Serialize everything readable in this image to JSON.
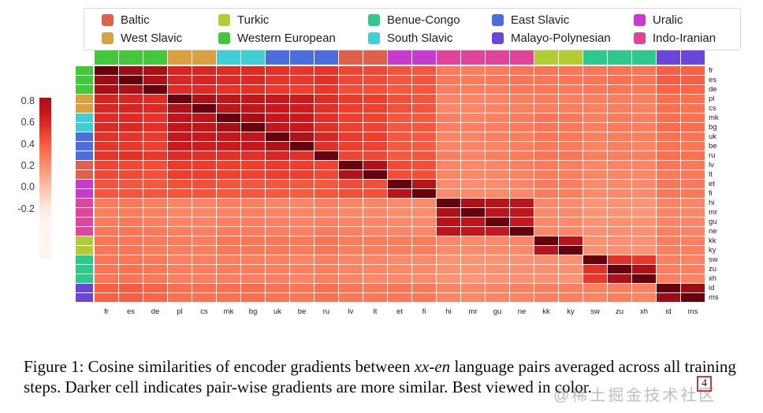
{
  "caption": {
    "prefix": "Figure 1: Cosine similarities of encoder gradients between ",
    "italic": "xx-en",
    "suffix": " language pairs averaged across all training steps. Darker cell indicates pair-wise gradients are more similar. Best viewed in color."
  },
  "watermark": {
    "text": "@稀土掘金技术社区",
    "page_number": "4"
  },
  "legend": {
    "families": [
      {
        "name": "Baltic",
        "color": "#e0604e"
      },
      {
        "name": "West Slavic",
        "color": "#d9a13f"
      },
      {
        "name": "Turkic",
        "color": "#b3cc35"
      },
      {
        "name": "Western European",
        "color": "#43c83b"
      },
      {
        "name": "Benue-Congo",
        "color": "#2ec98c"
      },
      {
        "name": "South Slavic",
        "color": "#3fcfd4"
      },
      {
        "name": "East Slavic",
        "color": "#4a6fdc"
      },
      {
        "name": "Malayo-Polynesian",
        "color": "#6a46d9"
      },
      {
        "name": "Uralic",
        "color": "#c63bce"
      },
      {
        "name": "Indo-Iranian",
        "color": "#e0449c"
      }
    ]
  },
  "languages": [
    {
      "code": "fr",
      "family": "Western European"
    },
    {
      "code": "es",
      "family": "Western European"
    },
    {
      "code": "de",
      "family": "Western European"
    },
    {
      "code": "pl",
      "family": "West Slavic"
    },
    {
      "code": "cs",
      "family": "West Slavic"
    },
    {
      "code": "mk",
      "family": "South Slavic"
    },
    {
      "code": "bg",
      "family": "South Slavic"
    },
    {
      "code": "uk",
      "family": "East Slavic"
    },
    {
      "code": "be",
      "family": "East Slavic"
    },
    {
      "code": "ru",
      "family": "East Slavic"
    },
    {
      "code": "lv",
      "family": "Baltic"
    },
    {
      "code": "lt",
      "family": "Baltic"
    },
    {
      "code": "et",
      "family": "Uralic"
    },
    {
      "code": "fi",
      "family": "Uralic"
    },
    {
      "code": "hi",
      "family": "Indo-Iranian"
    },
    {
      "code": "mr",
      "family": "Indo-Iranian"
    },
    {
      "code": "gu",
      "family": "Indo-Iranian"
    },
    {
      "code": "ne",
      "family": "Indo-Iranian"
    },
    {
      "code": "kk",
      "family": "Turkic"
    },
    {
      "code": "ky",
      "family": "Turkic"
    },
    {
      "code": "sw",
      "family": "Benue-Congo"
    },
    {
      "code": "zu",
      "family": "Benue-Congo"
    },
    {
      "code": "xh",
      "family": "Benue-Congo"
    },
    {
      "code": "id",
      "family": "Malayo-Polynesian"
    },
    {
      "code": "ms",
      "family": "Malayo-Polynesian"
    }
  ],
  "chart_data": {
    "type": "heatmap",
    "title": "Cosine similarities of encoder gradients between xx-en language pairs",
    "colormap": "Reds",
    "vmin": -0.3,
    "vmax": 1.0,
    "colorbar_ticks": [
      "0.8",
      "0.6",
      "0.4",
      "0.2",
      "0.0",
      "-0.2"
    ],
    "x_labels": [
      "fr",
      "es",
      "de",
      "pl",
      "cs",
      "mk",
      "bg",
      "uk",
      "be",
      "ru",
      "lv",
      "lt",
      "et",
      "fi",
      "hi",
      "mr",
      "gu",
      "ne",
      "kk",
      "ky",
      "sw",
      "zu",
      "xh",
      "id",
      "ms"
    ],
    "y_labels": [
      "fr",
      "es",
      "de",
      "pl",
      "cs",
      "mk",
      "bg",
      "uk",
      "be",
      "ru",
      "lv",
      "lt",
      "et",
      "fi",
      "hi",
      "mr",
      "gu",
      "ne",
      "kk",
      "ky",
      "sw",
      "zu",
      "xh",
      "id",
      "ms"
    ],
    "matrix": [
      [
        1.0,
        0.86,
        0.82,
        0.62,
        0.61,
        0.58,
        0.59,
        0.56,
        0.54,
        0.55,
        0.48,
        0.47,
        0.43,
        0.42,
        0.28,
        0.27,
        0.28,
        0.3,
        0.31,
        0.3,
        0.3,
        0.31,
        0.3,
        0.39,
        0.38
      ],
      [
        0.86,
        1.0,
        0.8,
        0.61,
        0.62,
        0.59,
        0.6,
        0.55,
        0.53,
        0.56,
        0.47,
        0.46,
        0.42,
        0.43,
        0.29,
        0.28,
        0.29,
        0.31,
        0.3,
        0.31,
        0.31,
        0.32,
        0.31,
        0.4,
        0.39
      ],
      [
        0.82,
        0.8,
        1.0,
        0.58,
        0.59,
        0.55,
        0.56,
        0.52,
        0.5,
        0.53,
        0.45,
        0.44,
        0.41,
        0.42,
        0.27,
        0.26,
        0.27,
        0.29,
        0.29,
        0.28,
        0.29,
        0.3,
        0.29,
        0.37,
        0.36
      ],
      [
        0.62,
        0.61,
        0.58,
        1.0,
        0.8,
        0.72,
        0.71,
        0.69,
        0.67,
        0.58,
        0.52,
        0.51,
        0.44,
        0.43,
        0.25,
        0.24,
        0.25,
        0.27,
        0.28,
        0.27,
        0.26,
        0.27,
        0.26,
        0.33,
        0.32
      ],
      [
        0.61,
        0.62,
        0.59,
        0.8,
        1.0,
        0.73,
        0.72,
        0.68,
        0.66,
        0.57,
        0.51,
        0.5,
        0.44,
        0.43,
        0.24,
        0.24,
        0.25,
        0.26,
        0.27,
        0.27,
        0.26,
        0.27,
        0.26,
        0.33,
        0.32
      ],
      [
        0.58,
        0.59,
        0.55,
        0.72,
        0.73,
        1.0,
        0.83,
        0.7,
        0.68,
        0.56,
        0.5,
        0.49,
        0.42,
        0.41,
        0.26,
        0.25,
        0.26,
        0.28,
        0.3,
        0.29,
        0.27,
        0.28,
        0.27,
        0.33,
        0.32
      ],
      [
        0.59,
        0.6,
        0.56,
        0.71,
        0.72,
        0.83,
        1.0,
        0.71,
        0.69,
        0.57,
        0.5,
        0.49,
        0.42,
        0.42,
        0.26,
        0.26,
        0.27,
        0.28,
        0.3,
        0.29,
        0.27,
        0.28,
        0.27,
        0.34,
        0.33
      ],
      [
        0.56,
        0.55,
        0.52,
        0.69,
        0.68,
        0.7,
        0.71,
        1.0,
        0.79,
        0.61,
        0.52,
        0.51,
        0.42,
        0.41,
        0.25,
        0.25,
        0.26,
        0.27,
        0.3,
        0.29,
        0.26,
        0.27,
        0.26,
        0.32,
        0.31
      ],
      [
        0.54,
        0.53,
        0.5,
        0.67,
        0.66,
        0.68,
        0.69,
        0.79,
        1.0,
        0.57,
        0.51,
        0.5,
        0.41,
        0.4,
        0.24,
        0.24,
        0.25,
        0.26,
        0.29,
        0.28,
        0.25,
        0.26,
        0.25,
        0.31,
        0.3
      ],
      [
        0.55,
        0.56,
        0.53,
        0.58,
        0.57,
        0.56,
        0.57,
        0.61,
        0.57,
        1.0,
        0.48,
        0.47,
        0.41,
        0.42,
        0.26,
        0.25,
        0.26,
        0.28,
        0.31,
        0.3,
        0.26,
        0.27,
        0.26,
        0.33,
        0.32
      ],
      [
        0.48,
        0.47,
        0.45,
        0.52,
        0.51,
        0.5,
        0.5,
        0.52,
        0.51,
        0.48,
        1.0,
        0.79,
        0.46,
        0.45,
        0.24,
        0.23,
        0.24,
        0.26,
        0.28,
        0.27,
        0.24,
        0.25,
        0.24,
        0.3,
        0.29
      ],
      [
        0.47,
        0.46,
        0.44,
        0.51,
        0.5,
        0.49,
        0.49,
        0.51,
        0.5,
        0.47,
        0.79,
        1.0,
        0.45,
        0.44,
        0.24,
        0.23,
        0.24,
        0.25,
        0.28,
        0.27,
        0.24,
        0.24,
        0.23,
        0.29,
        0.29
      ],
      [
        0.43,
        0.42,
        0.41,
        0.44,
        0.44,
        0.42,
        0.42,
        0.42,
        0.41,
        0.41,
        0.46,
        0.45,
        1.0,
        0.75,
        0.22,
        0.21,
        0.22,
        0.24,
        0.28,
        0.27,
        0.22,
        0.23,
        0.22,
        0.3,
        0.29
      ],
      [
        0.42,
        0.43,
        0.42,
        0.43,
        0.43,
        0.41,
        0.42,
        0.41,
        0.4,
        0.42,
        0.45,
        0.44,
        0.75,
        1.0,
        0.22,
        0.21,
        0.22,
        0.23,
        0.28,
        0.27,
        0.22,
        0.22,
        0.21,
        0.29,
        0.29
      ],
      [
        0.28,
        0.29,
        0.27,
        0.25,
        0.24,
        0.26,
        0.26,
        0.25,
        0.24,
        0.26,
        0.24,
        0.24,
        0.22,
        0.22,
        1.0,
        0.8,
        0.76,
        0.74,
        0.23,
        0.22,
        0.18,
        0.19,
        0.18,
        0.25,
        0.24
      ],
      [
        0.27,
        0.28,
        0.26,
        0.24,
        0.24,
        0.25,
        0.26,
        0.25,
        0.24,
        0.25,
        0.23,
        0.23,
        0.21,
        0.21,
        0.8,
        1.0,
        0.73,
        0.71,
        0.22,
        0.22,
        0.18,
        0.18,
        0.17,
        0.24,
        0.23
      ],
      [
        0.28,
        0.29,
        0.27,
        0.25,
        0.25,
        0.26,
        0.27,
        0.26,
        0.25,
        0.26,
        0.24,
        0.24,
        0.22,
        0.22,
        0.76,
        0.73,
        1.0,
        0.7,
        0.23,
        0.22,
        0.18,
        0.19,
        0.18,
        0.25,
        0.24
      ],
      [
        0.3,
        0.31,
        0.29,
        0.27,
        0.26,
        0.28,
        0.28,
        0.27,
        0.26,
        0.28,
        0.26,
        0.25,
        0.24,
        0.23,
        0.74,
        0.71,
        0.7,
        1.0,
        0.24,
        0.23,
        0.19,
        0.2,
        0.19,
        0.26,
        0.25
      ],
      [
        0.31,
        0.3,
        0.29,
        0.28,
        0.27,
        0.3,
        0.3,
        0.3,
        0.29,
        0.31,
        0.28,
        0.28,
        0.28,
        0.28,
        0.23,
        0.22,
        0.23,
        0.24,
        1.0,
        0.75,
        0.19,
        0.2,
        0.19,
        0.27,
        0.26
      ],
      [
        0.3,
        0.31,
        0.28,
        0.27,
        0.27,
        0.29,
        0.29,
        0.29,
        0.28,
        0.3,
        0.27,
        0.27,
        0.27,
        0.27,
        0.22,
        0.22,
        0.22,
        0.23,
        0.75,
        1.0,
        0.19,
        0.19,
        0.18,
        0.26,
        0.26
      ],
      [
        0.3,
        0.31,
        0.29,
        0.26,
        0.26,
        0.27,
        0.27,
        0.26,
        0.25,
        0.26,
        0.24,
        0.24,
        0.22,
        0.22,
        0.18,
        0.18,
        0.18,
        0.19,
        0.19,
        0.19,
        1.0,
        0.56,
        0.53,
        0.26,
        0.25
      ],
      [
        0.31,
        0.32,
        0.3,
        0.27,
        0.27,
        0.28,
        0.28,
        0.27,
        0.26,
        0.27,
        0.25,
        0.24,
        0.23,
        0.22,
        0.19,
        0.18,
        0.19,
        0.2,
        0.2,
        0.19,
        0.56,
        1.0,
        0.81,
        0.27,
        0.26
      ],
      [
        0.3,
        0.31,
        0.29,
        0.26,
        0.26,
        0.27,
        0.27,
        0.26,
        0.25,
        0.26,
        0.24,
        0.23,
        0.22,
        0.21,
        0.18,
        0.17,
        0.18,
        0.19,
        0.19,
        0.18,
        0.53,
        0.81,
        1.0,
        0.26,
        0.25
      ],
      [
        0.39,
        0.4,
        0.37,
        0.33,
        0.33,
        0.33,
        0.34,
        0.32,
        0.31,
        0.33,
        0.3,
        0.29,
        0.3,
        0.29,
        0.25,
        0.24,
        0.25,
        0.26,
        0.27,
        0.26,
        0.26,
        0.27,
        0.26,
        1.0,
        0.86
      ],
      [
        0.38,
        0.39,
        0.36,
        0.32,
        0.32,
        0.32,
        0.33,
        0.31,
        0.3,
        0.32,
        0.29,
        0.29,
        0.29,
        0.29,
        0.24,
        0.23,
        0.24,
        0.25,
        0.26,
        0.26,
        0.25,
        0.26,
        0.25,
        0.86,
        1.0
      ]
    ]
  }
}
